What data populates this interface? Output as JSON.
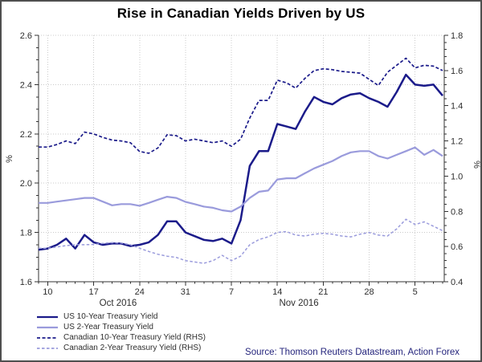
{
  "title": "Rise in Canadian Yields Driven by US",
  "source": "Source: Thomson Reuters Datastream, Action Forex",
  "colors": {
    "grid": "#cbcbcb",
    "axis": "#333333",
    "tick_text": "#2e2e2e",
    "navy": "#1b1b8a",
    "periwinkle": "#9a9bdc",
    "title_text": "#000000",
    "source_text": "#24247c",
    "frame_border": "#4f4f4f"
  },
  "chart_data": {
    "type": "line",
    "title": "Rise in Canadian Yields Driven by US",
    "grid": "dotted",
    "legend_position": "bottom-left",
    "x_dates": [
      "Oct 7",
      "Oct 10",
      "Oct 11",
      "Oct 12",
      "Oct 13",
      "Oct 14",
      "Oct 17",
      "Oct 18",
      "Oct 19",
      "Oct 20",
      "Oct 21",
      "Oct 24",
      "Oct 25",
      "Oct 26",
      "Oct 27",
      "Oct 28",
      "Oct 31",
      "Nov 1",
      "Nov 2",
      "Nov 3",
      "Nov 4",
      "Nov 7",
      "Nov 8",
      "Nov 9",
      "Nov 10",
      "Nov 11",
      "Nov 14",
      "Nov 15",
      "Nov 16",
      "Nov 17",
      "Nov 18",
      "Nov 21",
      "Nov 22",
      "Nov 23",
      "Nov 24",
      "Nov 25",
      "Nov 28",
      "Nov 29",
      "Nov 30",
      "Dec 1",
      "Dec 2",
      "Dec 5",
      "Dec 6",
      "Dec 7",
      "Dec 8"
    ],
    "week_ticks": [
      {
        "i": 1,
        "label": "10"
      },
      {
        "i": 6,
        "label": "17"
      },
      {
        "i": 11,
        "label": "24"
      },
      {
        "i": 16,
        "label": "31"
      },
      {
        "i": 21,
        "label": "7"
      },
      {
        "i": 26,
        "label": "14"
      },
      {
        "i": 31,
        "label": "21"
      },
      {
        "i": 36,
        "label": "28"
      },
      {
        "i": 41,
        "label": "5"
      }
    ],
    "month_labels": [
      {
        "i": 8.66,
        "label": "Oct 2016"
      },
      {
        "i": 28.35,
        "label": "Nov 2016"
      }
    ],
    "left_axis": {
      "label": "%",
      "min": 1.6,
      "max": 2.6,
      "major": 0.2,
      "minor": 0.05,
      "ticks": [
        "2.6",
        "2.4",
        "2.2",
        "2.0",
        "1.8",
        "1.6"
      ]
    },
    "right_axis": {
      "label": "%",
      "min": 0.4,
      "max": 1.8,
      "major": 0.2,
      "minor": 0.04,
      "ticks": [
        "1.8",
        "1.6",
        "1.4",
        "1.2",
        "1.0",
        "0.8",
        "0.6",
        "0.4"
      ]
    },
    "series": [
      {
        "name": "US 10-Year Treasury Yield",
        "axis": "left",
        "color": "#1b1b8a",
        "dash": null,
        "width": 2.5,
        "values": [
          1.73,
          1.735,
          1.75,
          1.775,
          1.735,
          1.79,
          1.76,
          1.75,
          1.755,
          1.755,
          1.745,
          1.75,
          1.76,
          1.79,
          1.845,
          1.845,
          1.8,
          1.785,
          1.77,
          1.765,
          1.775,
          1.755,
          1.85,
          2.07,
          2.13,
          2.13,
          2.24,
          2.23,
          2.22,
          2.29,
          2.35,
          2.33,
          2.32,
          2.345,
          2.36,
          2.365,
          2.345,
          2.33,
          2.31,
          2.37,
          2.44,
          2.4,
          2.395,
          2.4,
          2.355
        ]
      },
      {
        "name": "US 2-Year Treasury Yield",
        "axis": "left",
        "color": "#9a9bdc",
        "dash": null,
        "width": 2.2,
        "values": [
          1.92,
          1.92,
          1.925,
          1.93,
          1.935,
          1.94,
          1.94,
          1.925,
          1.91,
          1.915,
          1.915,
          1.908,
          1.92,
          1.933,
          1.945,
          1.94,
          1.924,
          1.915,
          1.905,
          1.9,
          1.89,
          1.885,
          1.905,
          1.94,
          1.965,
          1.97,
          2.015,
          2.02,
          2.02,
          2.04,
          2.06,
          2.075,
          2.09,
          2.11,
          2.125,
          2.13,
          2.13,
          2.11,
          2.1,
          2.115,
          2.13,
          2.145,
          2.115,
          2.135,
          2.11
        ]
      },
      {
        "name": "Canadian 10-Year Treasury Yield (RHS)",
        "axis": "right",
        "color": "#1b1b8a",
        "dash": "4 2.5",
        "width": 1.7,
        "values": [
          1.165,
          1.165,
          1.18,
          1.2,
          1.185,
          1.25,
          1.24,
          1.22,
          1.205,
          1.2,
          1.19,
          1.14,
          1.13,
          1.16,
          1.235,
          1.23,
          1.2,
          1.21,
          1.2,
          1.19,
          1.2,
          1.17,
          1.21,
          1.33,
          1.43,
          1.43,
          1.545,
          1.53,
          1.5,
          1.555,
          1.6,
          1.61,
          1.605,
          1.595,
          1.59,
          1.585,
          1.55,
          1.515,
          1.59,
          1.63,
          1.67,
          1.615,
          1.63,
          1.625,
          1.6
        ]
      },
      {
        "name": "Canadian 2-Year Treasury Yield (RHS)",
        "axis": "right",
        "color": "#9a9bdc",
        "dash": "3.5 2.5",
        "width": 1.5,
        "values": [
          0.59,
          0.59,
          0.598,
          0.605,
          0.61,
          0.61,
          0.612,
          0.618,
          0.622,
          0.62,
          0.61,
          0.59,
          0.572,
          0.556,
          0.545,
          0.538,
          0.52,
          0.512,
          0.505,
          0.52,
          0.55,
          0.52,
          0.545,
          0.61,
          0.64,
          0.655,
          0.68,
          0.685,
          0.665,
          0.66,
          0.67,
          0.675,
          0.67,
          0.66,
          0.655,
          0.67,
          0.68,
          0.665,
          0.66,
          0.7,
          0.755,
          0.725,
          0.74,
          0.715,
          0.69
        ]
      }
    ]
  }
}
